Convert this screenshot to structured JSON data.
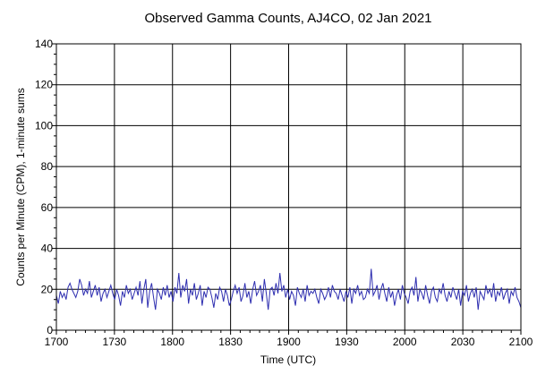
{
  "chart_data": {
    "type": "line",
    "title": "Observed Gamma Counts, AJ4CO, 02 Jan 2021",
    "xlabel": "Time (UTC)",
    "ylabel": "Counts per Minute (CPM), 1-minute sums",
    "x_tick_labels": [
      "1700",
      "1730",
      "1800",
      "1830",
      "1900",
      "1930",
      "2000",
      "2030",
      "2100"
    ],
    "x_range_minutes": [
      0,
      240
    ],
    "ylim": [
      0,
      140
    ],
    "y_ticks": [
      0,
      20,
      40,
      60,
      80,
      100,
      120,
      140
    ],
    "grid": true,
    "colors": {
      "series": "#2e2eb0",
      "grid": "#000000"
    },
    "series": [
      {
        "values": [
          17,
          13,
          19,
          16,
          18,
          15,
          21,
          23,
          20,
          18,
          16,
          19,
          25,
          22,
          17,
          20,
          18,
          24,
          16,
          19,
          22,
          17,
          21,
          14,
          18,
          20,
          16,
          19,
          22,
          18,
          15,
          20,
          17,
          12,
          19,
          16,
          22,
          18,
          20,
          15,
          18,
          21,
          17,
          24,
          13,
          20,
          25,
          11,
          19,
          23,
          16,
          10,
          20,
          18,
          15,
          21,
          17,
          22,
          16,
          19,
          14,
          21,
          18,
          28,
          16,
          22,
          19,
          25,
          13,
          20,
          17,
          23,
          15,
          18,
          22,
          12,
          19,
          16,
          21,
          20,
          16,
          11,
          18,
          15,
          21,
          19,
          14,
          20,
          17,
          12,
          15,
          19,
          22,
          18,
          21,
          14,
          17,
          23,
          16,
          19,
          13,
          20,
          24,
          17,
          19,
          22,
          14,
          25,
          18,
          10,
          20,
          21,
          17,
          23,
          18,
          28,
          19,
          22,
          16,
          20,
          15,
          19,
          17,
          12,
          21,
          18,
          16,
          20,
          14,
          22,
          17,
          19,
          18,
          20,
          16,
          13,
          20,
          18,
          15,
          17,
          21,
          16,
          22,
          19,
          18,
          15,
          20,
          17,
          14,
          19,
          16,
          21,
          13,
          20,
          18,
          22,
          17,
          19,
          15,
          16,
          20,
          18,
          30,
          17,
          19,
          22,
          15,
          20,
          23,
          18,
          14,
          21,
          16,
          19,
          12,
          17,
          20,
          15,
          22,
          18,
          16,
          13,
          19,
          21,
          17,
          26,
          14,
          20,
          18,
          15,
          22,
          17,
          13,
          19,
          21,
          16,
          14,
          20,
          18,
          23,
          17,
          14,
          19,
          16,
          21,
          18,
          15,
          20,
          12,
          19,
          17,
          22,
          14,
          18,
          20,
          16,
          21,
          10,
          19,
          17,
          15,
          22,
          18,
          20,
          16,
          23,
          14,
          19,
          17,
          21,
          15,
          18,
          20,
          13,
          19,
          17,
          21,
          16,
          14,
          11
        ]
      }
    ]
  }
}
